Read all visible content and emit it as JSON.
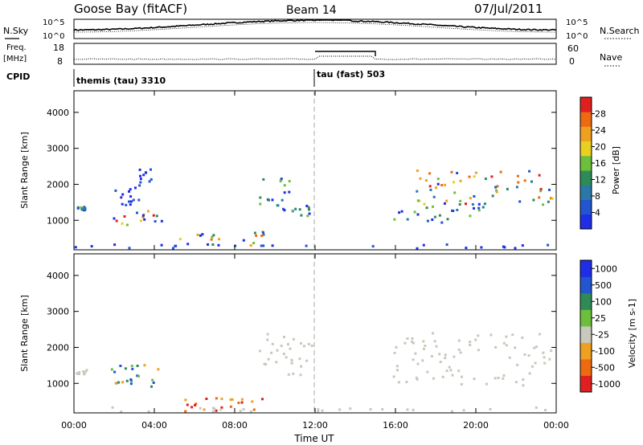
{
  "header": {
    "station": "Goose Bay (fitACF)",
    "beam": "Beam 14",
    "date": "07/Jul/2011"
  },
  "noise_panel": {
    "left_label": "N.Sky",
    "right_label": "N.Search",
    "left_ticks": [
      "10^5",
      "10^0"
    ],
    "right_ticks": [
      "10^5",
      "10^0"
    ]
  },
  "freq_panel": {
    "left_label_1": "Freq.",
    "left_label_2": "[MHz]",
    "left_ticks": [
      "18",
      "8"
    ],
    "right_label": "Nave",
    "right_ticks": [
      "60",
      "0"
    ]
  },
  "cpid_panel": {
    "label": "CPID",
    "modes": [
      {
        "name": "themis (tau) 3310"
      },
      {
        "name": "tau (fast) 503"
      }
    ]
  },
  "x_axis": {
    "label": "Time UT",
    "ticks": [
      "00:00",
      "04:00",
      "08:00",
      "12:00",
      "16:00",
      "20:00",
      "00:00"
    ]
  },
  "chart_data": [
    {
      "type": "heatmap",
      "title": "",
      "xlabel": "Time UT",
      "ylabel": "Slant Range [km]",
      "xlim": [
        0,
        24
      ],
      "ylim": [
        180,
        4600
      ],
      "yticks": [
        "1000",
        "2000",
        "3000",
        "4000"
      ],
      "colorbar": {
        "label": "Power [dB]",
        "ticks": [
          "4",
          "8",
          "12",
          "16",
          "20",
          "24",
          "28"
        ],
        "range": [
          0,
          30
        ],
        "colors": [
          "#1e2de6",
          "#2255d0",
          "#2a78a8",
          "#2e8b57",
          "#6cbf3a",
          "#e8d020",
          "#f0a020",
          "#ee6a10",
          "#e02020"
        ]
      },
      "regions": [
        {
          "t0": 0.0,
          "t1": 0.6,
          "r0": 1230,
          "r1": 1360,
          "level": "mid"
        },
        {
          "t0": 1.8,
          "t1": 4.4,
          "r0": 850,
          "r1": 1250,
          "level": "high"
        },
        {
          "t0": 2.0,
          "t1": 3.2,
          "r0": 1400,
          "r1": 1900,
          "level": "low"
        },
        {
          "t0": 3.2,
          "t1": 3.8,
          "r0": 1900,
          "r1": 2400,
          "level": "low"
        },
        {
          "t0": 5.0,
          "t1": 9.5,
          "r0": 280,
          "r1": 700,
          "level": "high"
        },
        {
          "t0": 9.2,
          "t1": 10.8,
          "r0": 1400,
          "r1": 2400,
          "level": "mid"
        },
        {
          "t0": 10.3,
          "t1": 11.8,
          "r0": 1100,
          "r1": 1400,
          "level": "mid"
        },
        {
          "t0": 15.8,
          "t1": 20.5,
          "r0": 900,
          "r1": 1400,
          "level": "mid"
        },
        {
          "t0": 17.0,
          "t1": 23.8,
          "r0": 1400,
          "r1": 2400,
          "level": "high"
        },
        {
          "t0": 0.0,
          "t1": 24.0,
          "r0": 200,
          "r1": 320,
          "level": "low"
        }
      ]
    },
    {
      "type": "heatmap",
      "title": "",
      "xlabel": "Time UT",
      "ylabel": "Slant Range [km]",
      "xlim": [
        0,
        24
      ],
      "ylim": [
        180,
        4600
      ],
      "yticks": [
        "1000",
        "2000",
        "3000",
        "4000"
      ],
      "colorbar": {
        "label": "Velocity [m s-1]",
        "ticks": [
          "1000",
          "500",
          "100",
          "25",
          "-25",
          "-100",
          "-500",
          "-1000"
        ],
        "range": [
          -1000,
          1000
        ],
        "colors": [
          "#e02020",
          "#ee6a10",
          "#f0a020",
          "#c8c8bc",
          "#6cbf3a",
          "#2e8b57",
          "#2255d0",
          "#1e2de6"
        ]
      },
      "regions": [
        {
          "t0": 0.0,
          "t1": 0.6,
          "r0": 1230,
          "r1": 1360,
          "level": "ground"
        },
        {
          "t0": 1.8,
          "t1": 4.4,
          "r0": 850,
          "r1": 1500,
          "level": "pos"
        },
        {
          "t0": 5.0,
          "t1": 9.5,
          "r0": 200,
          "r1": 600,
          "level": "neg"
        },
        {
          "t0": 9.2,
          "t1": 11.8,
          "r0": 1100,
          "r1": 2400,
          "level": "ground"
        },
        {
          "t0": 15.8,
          "t1": 23.8,
          "r0": 900,
          "r1": 2400,
          "level": "ground"
        },
        {
          "t0": 0.0,
          "t1": 24.0,
          "r0": 200,
          "r1": 320,
          "level": "ground"
        }
      ]
    }
  ]
}
